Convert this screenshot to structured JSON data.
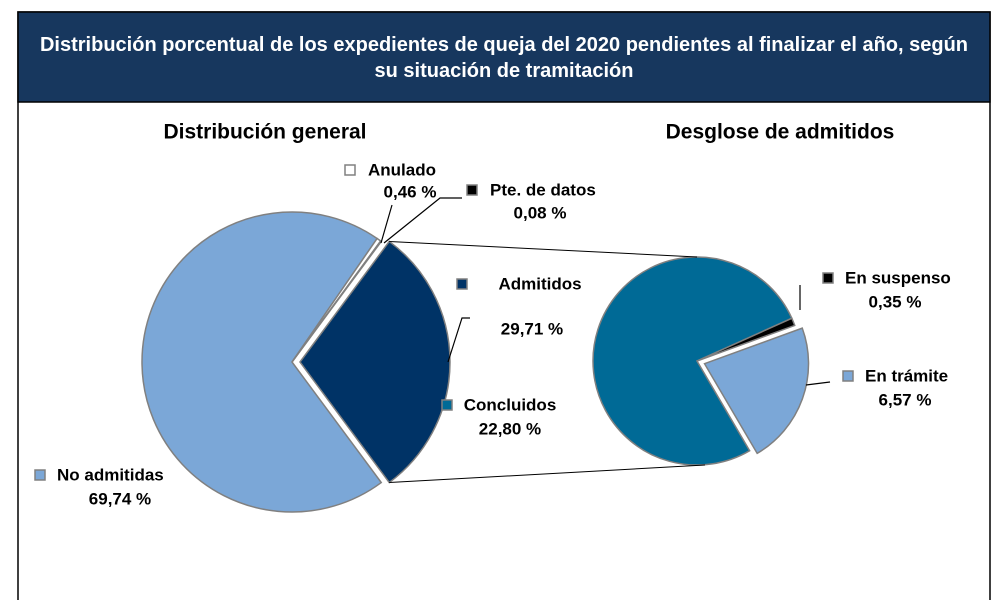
{
  "title": "Distribución porcentual de los expedientes de queja del 2020 pendientes al finalizar el año, según su situación de tramitación",
  "chart_data": [
    {
      "type": "pie",
      "title": "Distribución general",
      "categories": [
        "Admitidos",
        "No admitidas",
        "Anulado",
        "Pte. de datos"
      ],
      "values": [
        29.71,
        69.74,
        0.46,
        0.08
      ],
      "value_labels": [
        "29,71 %",
        "69,74 %",
        "0,46 %",
        "0,08 %"
      ],
      "colors": [
        "#003366",
        "#7ba7d7",
        "#ffffff",
        "#000000"
      ]
    },
    {
      "type": "pie",
      "title": "Desglose de admitidos",
      "categories": [
        "En trámite",
        "Concluidos",
        "En suspenso"
      ],
      "values": [
        6.57,
        22.8,
        0.35
      ],
      "value_labels": [
        "6,57 %",
        "22,80 %",
        "0,35 %"
      ],
      "colors": [
        "#7ba7d7",
        "#006a96",
        "#000000"
      ]
    }
  ]
}
